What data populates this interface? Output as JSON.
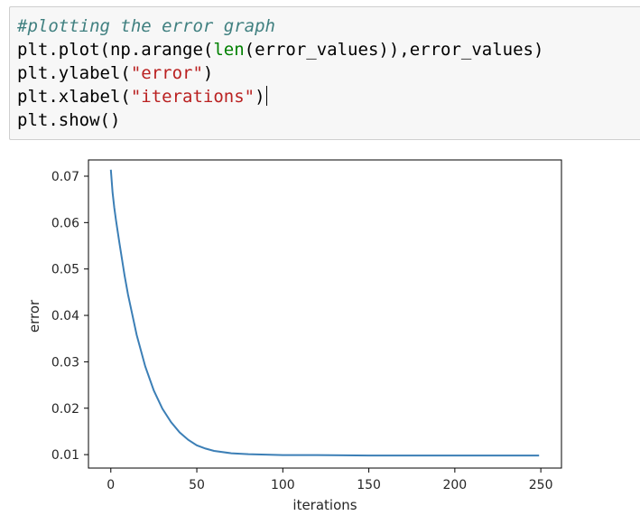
{
  "code_cell": {
    "lines": [
      [
        {
          "cls": "comment",
          "text": "#plotting the error graph"
        }
      ],
      [
        {
          "cls": "",
          "text": "plt.plot(np.arange("
        },
        {
          "cls": "builtin",
          "text": "len"
        },
        {
          "cls": "",
          "text": "(error_values)),error_values)"
        }
      ],
      [
        {
          "cls": "",
          "text": "plt.ylabel("
        },
        {
          "cls": "string",
          "text": "\"error\""
        },
        {
          "cls": "",
          "text": ")"
        }
      ],
      [
        {
          "cls": "",
          "text": "plt.xlabel("
        },
        {
          "cls": "string",
          "text": "\"iterations\""
        },
        {
          "cls": "",
          "text": ")"
        },
        {
          "cls": "caret",
          "text": ""
        }
      ],
      [
        {
          "cls": "",
          "text": "plt.show()"
        }
      ]
    ]
  },
  "chart_data": {
    "type": "line",
    "xlabel": "iterations",
    "ylabel": "error",
    "xlim": [
      -13,
      262
    ],
    "ylim": [
      0.0071,
      0.0735
    ],
    "xticks": [
      0,
      50,
      100,
      150,
      200,
      250
    ],
    "yticks": [
      0.01,
      0.02,
      0.03,
      0.04,
      0.05,
      0.06,
      0.07
    ],
    "ytick_labels": [
      "0.01",
      "0.02",
      "0.03",
      "0.04",
      "0.05",
      "0.06",
      "0.07"
    ],
    "grid": false,
    "line_color": "#3c7fb6",
    "series": [
      {
        "x": [
          0,
          1,
          2,
          3,
          5,
          8,
          10,
          15,
          20,
          25,
          30,
          35,
          40,
          45,
          50,
          55,
          60,
          70,
          80,
          90,
          100,
          120,
          150,
          200,
          249
        ],
        "values": [
          0.0714,
          0.0665,
          0.0632,
          0.0605,
          0.0556,
          0.0486,
          0.0445,
          0.0358,
          0.029,
          0.0238,
          0.0199,
          0.017,
          0.0148,
          0.0132,
          0.012,
          0.0113,
          0.0108,
          0.0103,
          0.0101,
          0.01,
          0.0099,
          0.0099,
          0.0098,
          0.0098,
          0.0098
        ]
      }
    ]
  }
}
